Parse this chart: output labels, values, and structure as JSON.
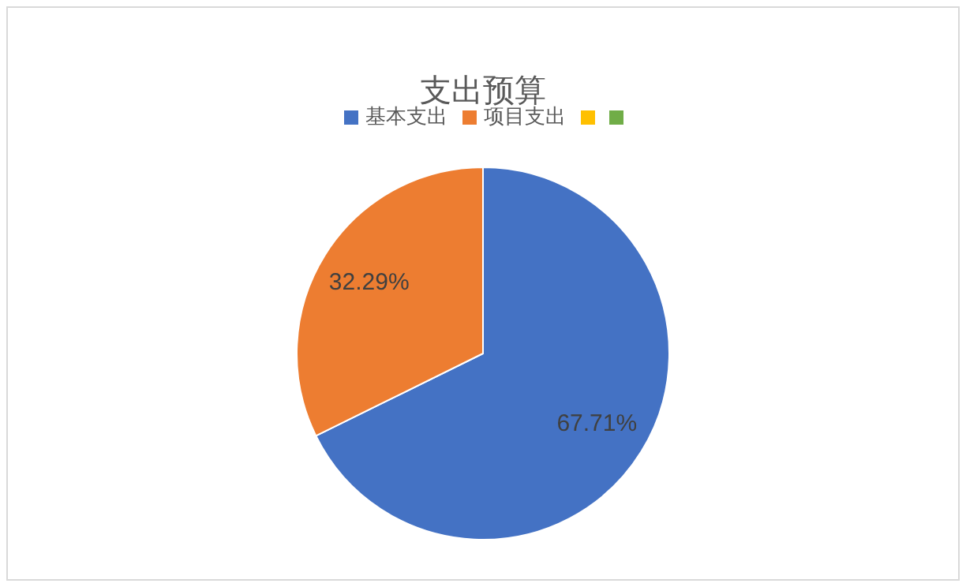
{
  "chart_data": {
    "type": "pie",
    "title": "支出预算",
    "categories": [
      "基本支出",
      "项目支出",
      null,
      null
    ],
    "values": [
      67.71,
      32.29,
      0,
      0
    ],
    "colors": [
      "#4472c4",
      "#ed7d31",
      "#ffc000",
      "#70ad47"
    ],
    "value_labels": [
      "67.71%",
      "32.29%",
      null,
      null
    ],
    "legend": "top"
  }
}
